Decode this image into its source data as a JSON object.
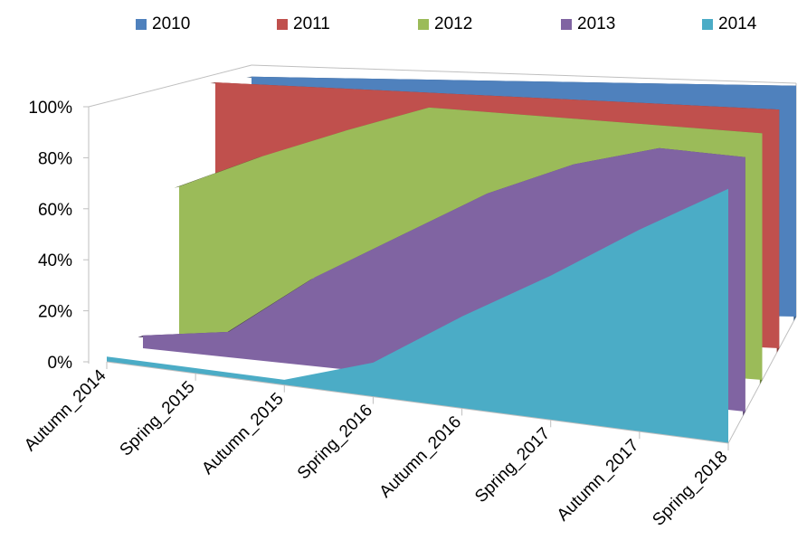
{
  "chart_data": {
    "type": "area",
    "style": "3d",
    "categories": [
      "Autumn_2014",
      "Spring_2015",
      "Autumn_2015",
      "Spring_2016",
      "Autumn_2016",
      "Spring_2017",
      "Autumn_2017",
      "Spring_2018"
    ],
    "ylim": [
      0,
      1
    ],
    "yticks": [
      "0%",
      "20%",
      "40%",
      "60%",
      "80%",
      "100%"
    ],
    "grid": false,
    "legend_position": "top",
    "series": [
      {
        "name": "2010",
        "color": "#4f81bd",
        "values": [
          1.0,
          1.0,
          1.0,
          1.0,
          1.0,
          1.0,
          1.0,
          1.0
        ]
      },
      {
        "name": "2011",
        "color": "#c0504d",
        "values": [
          1.0,
          1.0,
          1.0,
          1.0,
          1.0,
          1.0,
          1.0,
          1.0
        ]
      },
      {
        "name": "2012",
        "color": "#9bbb59",
        "values": [
          0.6,
          0.75,
          0.88,
          1.0,
          1.0,
          1.0,
          1.0,
          1.0
        ]
      },
      {
        "name": "2013",
        "color": "#8064a2",
        "values": [
          0.05,
          0.1,
          0.35,
          0.55,
          0.75,
          0.9,
          1.0,
          1.0
        ]
      },
      {
        "name": "2014",
        "color": "#4bacc6",
        "values": [
          0.02,
          0.02,
          0.02,
          0.13,
          0.35,
          0.55,
          0.77,
          0.97
        ]
      }
    ]
  }
}
